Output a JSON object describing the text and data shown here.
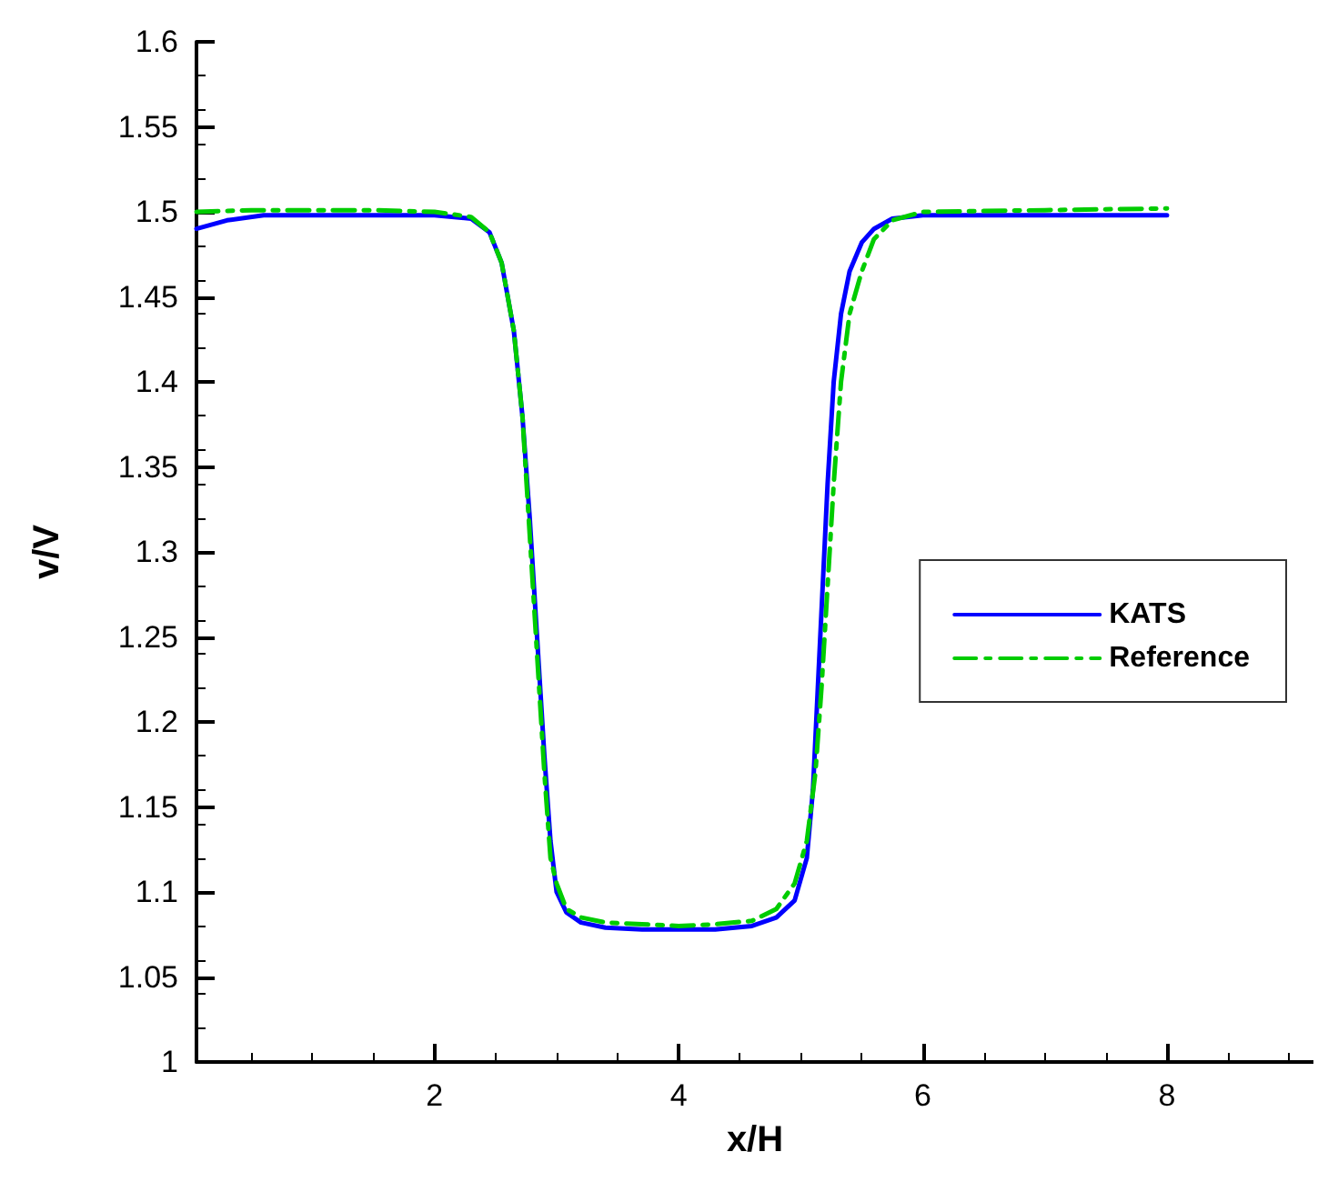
{
  "chart_data": {
    "type": "line",
    "xlabel": "x/H",
    "ylabel": "v/V",
    "xlim": [
      0.05,
      9.2
    ],
    "xticks": [
      2,
      4,
      6,
      8
    ],
    "ylim": [
      1,
      1.6
    ],
    "yticks": [
      1,
      1.05,
      1.1,
      1.15,
      1.2,
      1.25,
      1.3,
      1.35,
      1.4,
      1.45,
      1.5,
      1.55,
      1.6
    ],
    "grid": false,
    "legend": "right",
    "marker": "none",
    "series": [
      {
        "name": "KATS",
        "color": "#0000ff",
        "line_style": "solid",
        "x": [
          0.05,
          0.3,
          0.6,
          1,
          1.5,
          2,
          2.3,
          2.45,
          2.55,
          2.65,
          2.72,
          2.78,
          2.84,
          2.9,
          2.95,
          3,
          3.08,
          3.2,
          3.4,
          3.7,
          4,
          4.3,
          4.6,
          4.8,
          4.95,
          5.05,
          5.1,
          5.14,
          5.18,
          5.22,
          5.27,
          5.33,
          5.4,
          5.5,
          5.6,
          5.75,
          6,
          7,
          8
        ],
        "values": [
          1.49,
          1.495,
          1.498,
          1.498,
          1.498,
          1.498,
          1.496,
          1.488,
          1.47,
          1.43,
          1.38,
          1.32,
          1.25,
          1.18,
          1.13,
          1.1,
          1.088,
          1.082,
          1.079,
          1.078,
          1.078,
          1.078,
          1.08,
          1.085,
          1.095,
          1.12,
          1.16,
          1.22,
          1.28,
          1.34,
          1.4,
          1.44,
          1.465,
          1.482,
          1.49,
          1.496,
          1.498,
          1.498,
          1.498
        ]
      },
      {
        "name": "Reference",
        "color": "#00cc00",
        "line_style": "dashdot",
        "x": [
          0.05,
          0.5,
          1,
          1.5,
          2,
          2.3,
          2.45,
          2.55,
          2.65,
          2.72,
          2.78,
          2.84,
          2.9,
          2.95,
          3,
          3.08,
          3.2,
          3.4,
          3.7,
          4,
          4.3,
          4.6,
          4.8,
          4.95,
          5.05,
          5.12,
          5.17,
          5.22,
          5.27,
          5.33,
          5.4,
          5.5,
          5.6,
          5.75,
          6,
          7,
          8
        ],
        "values": [
          1.5,
          1.501,
          1.501,
          1.501,
          1.5,
          1.497,
          1.488,
          1.47,
          1.43,
          1.38,
          1.31,
          1.24,
          1.17,
          1.12,
          1.105,
          1.09,
          1.085,
          1.082,
          1.081,
          1.08,
          1.081,
          1.083,
          1.09,
          1.105,
          1.13,
          1.17,
          1.22,
          1.28,
          1.34,
          1.4,
          1.44,
          1.465,
          1.484,
          1.495,
          1.5,
          1.501,
          1.502
        ]
      }
    ]
  }
}
